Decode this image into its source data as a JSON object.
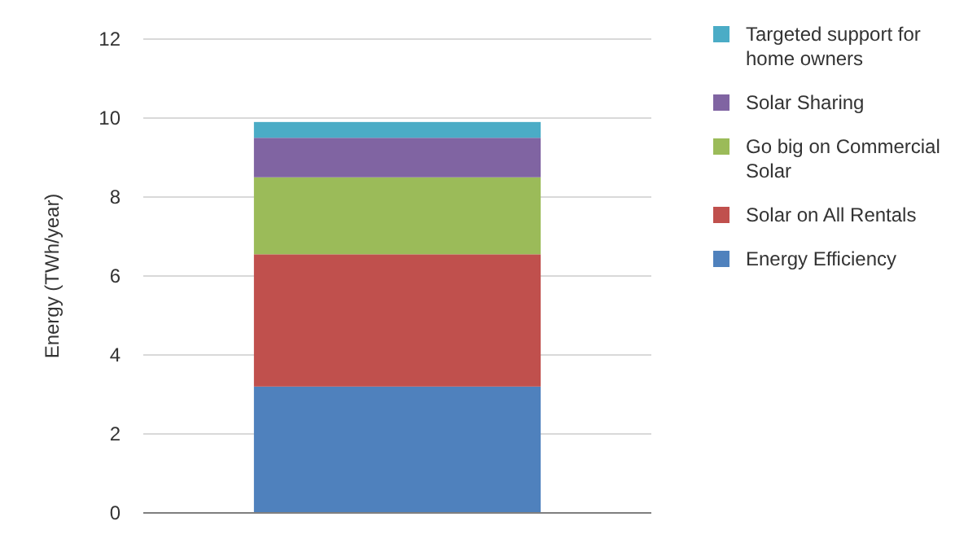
{
  "chart_data": {
    "type": "bar",
    "stacked": true,
    "ylabel": "Energy (TWh/year)",
    "categories": [
      null
    ],
    "series": [
      {
        "name": "Energy Efficiency",
        "color": "#4f81bd",
        "values": [
          3.2
        ]
      },
      {
        "name": "Solar on All Rentals",
        "color": "#c0504d",
        "values": [
          3.35
        ]
      },
      {
        "name": "Go big on Commercial Solar",
        "color": "#9bbb59",
        "values": [
          1.95
        ]
      },
      {
        "name": "Solar Sharing",
        "color": "#8064a2",
        "values": [
          1.0
        ]
      },
      {
        "name": "Targeted support for home owners",
        "color": "#4bacc6",
        "values": [
          0.4
        ]
      }
    ],
    "ylim": [
      0,
      12
    ],
    "yticks": [
      0,
      2,
      4,
      6,
      8,
      10,
      12
    ],
    "grid": "y",
    "legend": "right"
  }
}
